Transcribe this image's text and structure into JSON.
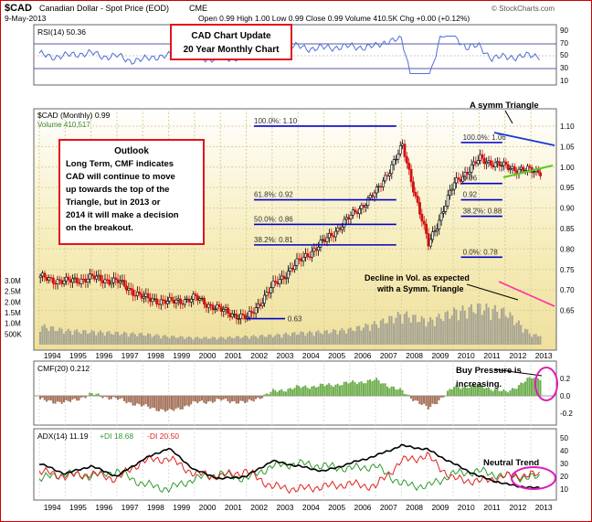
{
  "header": {
    "symbol": "$CAD",
    "name": "Canadian Dollar - Spot Price (EOD)",
    "exchange": "CME",
    "date": "9-May-2013",
    "ohlc": "Open 0.99  High 1.00  Low 0.99  Close 0.99  Volume 410.5K  Chg +0.00 (+0.12%)",
    "brand": "© StockCharts.com"
  },
  "rsi_panel": {
    "label": "RSI(14) 50.36",
    "ticks": [
      "90",
      "70",
      "50",
      "30",
      "10"
    ]
  },
  "callouts": {
    "cad_update_line1": "CAD Chart Update",
    "cad_update_line2": "20 Year Monthly Chart",
    "outlook_title": "Outlook",
    "outlook_lines": [
      "Long Term, CMF indicates",
      "CAD will continue to move",
      "up towards the top of the",
      "Triangle, but in 2013 or",
      "2014 it will make a decision",
      "on the breakout."
    ],
    "symm_triangle": "A symm Triangle",
    "decline_vol_line1": "Decline in Vol. as expected",
    "decline_vol_line2": "with a Symm. Triangle",
    "buy_pressure_line1": "Buy Pressure is",
    "buy_pressure_line2": "increasing.",
    "neutral_trend": "Neutral Trend"
  },
  "price_panel": {
    "label": "$CAD (Monthly) 0.99",
    "volume_label": "Volume 410,517",
    "right_ticks": [
      "1.10",
      "1.05",
      "1.00",
      "0.95",
      "0.90",
      "0.85",
      "0.80",
      "0.75",
      "0.70",
      "0.65"
    ],
    "volume_ticks": [
      "3.0M",
      "2.5M",
      "2.0M",
      "1.5M",
      "1.0M",
      "500K"
    ],
    "fib_left": [
      {
        "label": "100.0%: 1.10"
      },
      {
        "label": "61.8%: 0.92"
      },
      {
        "label": "50.0%: 0.86"
      },
      {
        "label": "38.2%: 0.81"
      }
    ],
    "fib_right": [
      {
        "label": "100.0%: 1.06"
      },
      {
        "label": "0.96"
      },
      {
        "label": "0.92"
      },
      {
        "label": "38.2%: 0.88"
      },
      {
        "label": "0.0%: 0.78"
      }
    ],
    "fib_low_label": "0.63"
  },
  "years": [
    "1994",
    "1995",
    "1996",
    "1997",
    "1998",
    "1999",
    "2000",
    "2001",
    "2002",
    "2003",
    "2004",
    "2005",
    "2006",
    "2007",
    "2008",
    "2009",
    "2010",
    "2011",
    "2012",
    "2013"
  ],
  "cmf_panel": {
    "label": "CMF(20) 0.212",
    "ticks": [
      "0.2",
      "0.0",
      "-0.2"
    ]
  },
  "adx_panel": {
    "label_adx": "ADX(14) 11.19",
    "label_pdi": "+DI 18.68",
    "label_mdi": "-DI 20.50",
    "ticks": [
      "50",
      "40",
      "30",
      "20",
      "10"
    ]
  },
  "colors": {
    "price_bg": "#f6edbc",
    "panel_bg": "#ffffff",
    "rsi_line": "#4f6fd6",
    "fib_line": "#0000c8",
    "triangle_top": "#1a35d6",
    "triangle_bottom": "#55cc22",
    "volume_decline": "#ff2fa0",
    "callout_border": "#e0141b",
    "cmf_pos": "#6fae4f",
    "cmf_neg": "#a5735a",
    "adx": "#000000",
    "pdi": "#2e9a2e",
    "mdi": "#e02020",
    "ellipse": "#e01cb8"
  },
  "chart_data": {
    "type": "line",
    "title": "$CAD Canadian Dollar - Spot Price (EOD) CME",
    "frequency": "monthly",
    "x": [
      "1994",
      "1995",
      "1996",
      "1997",
      "1998",
      "1999",
      "2000",
      "2001",
      "2002",
      "2003",
      "2004",
      "2005",
      "2006",
      "2007",
      "2008",
      "2009",
      "2010",
      "2011",
      "2012",
      "2013"
    ],
    "series": [
      {
        "name": "$CAD (Monthly)",
        "values": [
          0.73,
          0.72,
          0.73,
          0.72,
          0.68,
          0.67,
          0.68,
          0.65,
          0.63,
          0.71,
          0.77,
          0.82,
          0.88,
          0.94,
          1.05,
          0.81,
          0.96,
          1.02,
          1.0,
          0.99
        ]
      },
      {
        "name": "Volume",
        "values": [
          800000,
          600000,
          550000,
          500000,
          450000,
          350000,
          300000,
          300000,
          350000,
          400000,
          500000,
          550000,
          650000,
          900000,
          1300000,
          1000000,
          1400000,
          1600000,
          1400000,
          410517
        ]
      },
      {
        "name": "CMF(20)",
        "values": [
          -0.05,
          -0.08,
          0.02,
          -0.04,
          -0.12,
          -0.18,
          -0.08,
          -0.05,
          -0.08,
          0.05,
          0.1,
          0.12,
          0.15,
          0.18,
          0.05,
          -0.15,
          0.1,
          0.12,
          0.04,
          0.21
        ]
      },
      {
        "name": "ADX(14)",
        "values": [
          30,
          22,
          28,
          20,
          33,
          42,
          25,
          18,
          20,
          32,
          28,
          24,
          30,
          36,
          44,
          41,
          30,
          20,
          14,
          11
        ]
      },
      {
        "name": "+DI",
        "values": [
          18,
          22,
          20,
          24,
          14,
          10,
          18,
          22,
          18,
          28,
          30,
          28,
          26,
          28,
          14,
          12,
          22,
          24,
          20,
          19
        ]
      },
      {
        "name": "-DI",
        "values": [
          24,
          20,
          22,
          18,
          32,
          34,
          22,
          20,
          24,
          12,
          10,
          12,
          14,
          12,
          32,
          36,
          18,
          16,
          20,
          21
        ]
      }
    ],
    "ylim": [
      0.62,
      1.12
    ],
    "fibonacci": {
      "left": {
        "100.0%": 1.1,
        "61.8%": 0.92,
        "50.0%": 0.86,
        "38.2%": 0.81,
        "low": 0.63
      },
      "right": {
        "100.0%": 1.06,
        "0.96": 0.96,
        "0.92": 0.92,
        "38.2%": 0.88,
        "0.0%": 0.78
      }
    },
    "grid": true
  }
}
